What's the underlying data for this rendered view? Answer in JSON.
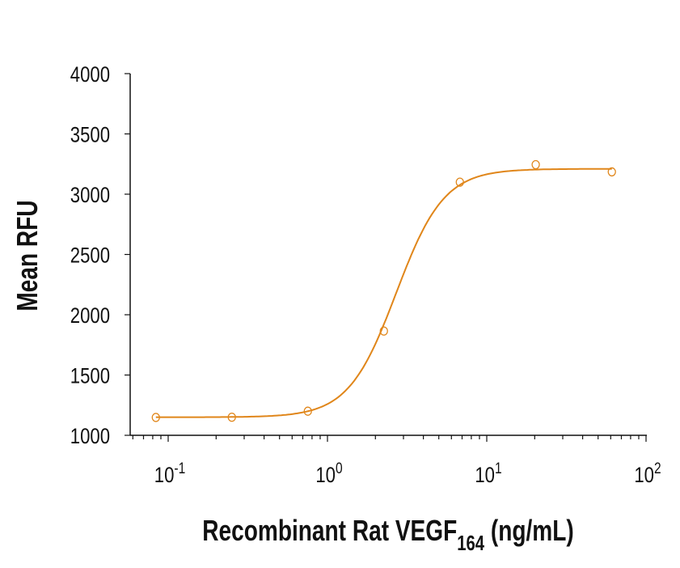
{
  "chart_data": {
    "type": "scatter",
    "title": "",
    "xlabel": {
      "main": "Recombinant Rat VEGF",
      "subscript": "164",
      "unit": "(ng/mL)"
    },
    "ylabel": "Mean RFU",
    "x_scale": "log",
    "xlim": [
      0.1,
      100
    ],
    "ylim": [
      1000,
      4000
    ],
    "x_ticks": [
      {
        "base": "10",
        "exp": "-1"
      },
      {
        "base": "10",
        "exp": "0"
      },
      {
        "base": "10",
        "exp": "1"
      },
      {
        "base": "10",
        "exp": "2"
      }
    ],
    "y_ticks": [
      "1000",
      "1500",
      "2000",
      "2500",
      "3000",
      "3500",
      "4000"
    ],
    "grid": false,
    "color": "#E0861A",
    "series": [
      {
        "marker": "open-circle",
        "x": [
          0.0837,
          0.251,
          0.753,
          2.26,
          6.78,
          20.3,
          61.0
        ],
        "y": [
          1148,
          1150,
          1200,
          1865,
          3100,
          3245,
          3185
        ]
      }
    ],
    "fit": {
      "type": "4PL",
      "bottom": 1150,
      "top": 3210,
      "ec50": 2.7,
      "hill": 2.9,
      "x_range": [
        0.0837,
        61.0
      ]
    }
  }
}
